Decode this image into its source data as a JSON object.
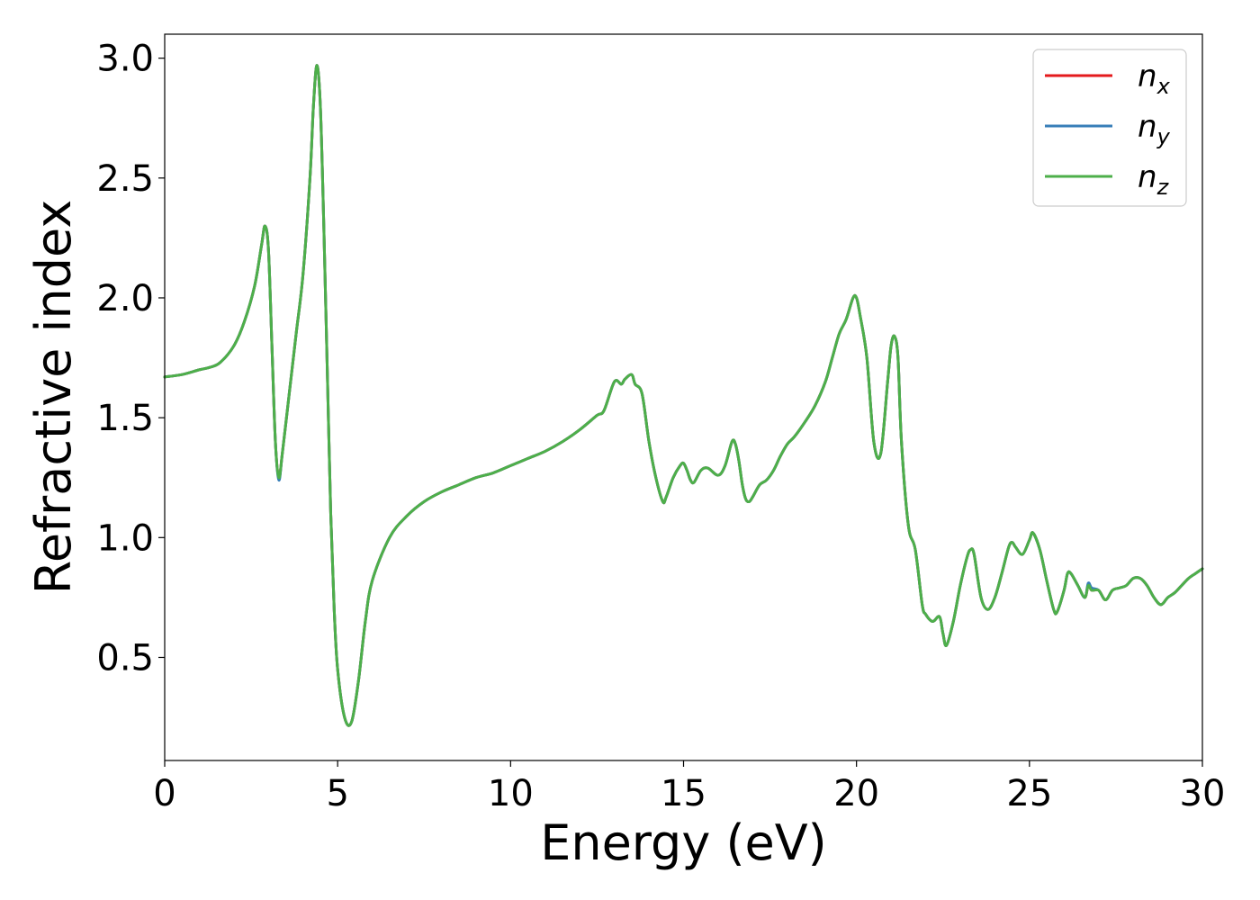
{
  "chart_data": {
    "type": "line",
    "title": "",
    "xlabel": "Energy (eV)",
    "ylabel": "Refractive index",
    "xlim": [
      0,
      30
    ],
    "ylim": [
      0.07,
      3.1
    ],
    "xticks": [
      0,
      5,
      10,
      15,
      20,
      25,
      30
    ],
    "xtick_labels": [
      "0",
      "5",
      "10",
      "15",
      "20",
      "25",
      "30"
    ],
    "yticks": [
      0.5,
      1.0,
      1.5,
      2.0,
      2.5,
      3.0
    ],
    "ytick_labels": [
      "0.5",
      "1.0",
      "1.5",
      "2.0",
      "2.5",
      "3.0"
    ],
    "grid": false,
    "legend": {
      "placement": "top-right",
      "entries": [
        {
          "base": "n",
          "sub": "x",
          "color": "#e41a1c"
        },
        {
          "base": "n",
          "sub": "y",
          "color": "#377eb8"
        },
        {
          "base": "n",
          "sub": "z",
          "color": "#4daf4a"
        }
      ]
    },
    "x": [
      0,
      0.5,
      1.0,
      1.3,
      1.6,
      2.0,
      2.3,
      2.6,
      2.8,
      2.9,
      3.0,
      3.1,
      3.2,
      3.3,
      3.4,
      3.6,
      3.8,
      4.0,
      4.2,
      4.3,
      4.4,
      4.5,
      4.6,
      4.7,
      4.8,
      4.9,
      5.0,
      5.2,
      5.4,
      5.6,
      5.8,
      6.0,
      6.5,
      7.0,
      7.5,
      8.0,
      8.5,
      9.0,
      9.5,
      10.0,
      10.5,
      11.0,
      11.5,
      12.0,
      12.5,
      12.7,
      13.0,
      13.2,
      13.3,
      13.5,
      13.6,
      13.8,
      14.0,
      14.2,
      14.4,
      14.5,
      14.7,
      14.9,
      15.0,
      15.1,
      15.2,
      15.3,
      15.5,
      15.7,
      16.0,
      16.2,
      16.4,
      16.5,
      16.6,
      16.7,
      16.8,
      16.9,
      17.0,
      17.2,
      17.4,
      17.6,
      17.8,
      18.0,
      18.2,
      18.5,
      18.8,
      19.1,
      19.3,
      19.5,
      19.7,
      19.9,
      20.0,
      20.1,
      20.3,
      20.5,
      20.7,
      20.9,
      21.0,
      21.1,
      21.2,
      21.3,
      21.5,
      21.7,
      21.9,
      22.0,
      22.2,
      22.4,
      22.5,
      22.6,
      22.8,
      23.0,
      23.2,
      23.3,
      23.4,
      23.6,
      23.8,
      24.0,
      24.2,
      24.4,
      24.5,
      24.6,
      24.8,
      25.0,
      25.1,
      25.3,
      25.5,
      25.7,
      25.8,
      26.0,
      26.1,
      26.2,
      26.4,
      26.6,
      26.7,
      26.8,
      27.0,
      27.2,
      27.4,
      27.6,
      27.8,
      28.0,
      28.2,
      28.4,
      28.6,
      28.8,
      29.0,
      29.2,
      29.4,
      29.6,
      29.8,
      30.0
    ],
    "series": [
      {
        "name": "n_x",
        "color": "#e41a1c",
        "values": [
          1.67,
          1.68,
          1.7,
          1.71,
          1.73,
          1.8,
          1.9,
          2.05,
          2.22,
          2.3,
          2.2,
          1.8,
          1.4,
          1.25,
          1.35,
          1.6,
          1.85,
          2.1,
          2.5,
          2.8,
          2.97,
          2.8,
          2.3,
          1.7,
          1.1,
          0.7,
          0.45,
          0.25,
          0.23,
          0.4,
          0.65,
          0.82,
          1.0,
          1.09,
          1.15,
          1.19,
          1.22,
          1.25,
          1.27,
          1.3,
          1.33,
          1.36,
          1.4,
          1.45,
          1.51,
          1.53,
          1.65,
          1.64,
          1.66,
          1.68,
          1.64,
          1.6,
          1.4,
          1.25,
          1.15,
          1.17,
          1.25,
          1.3,
          1.31,
          1.28,
          1.24,
          1.23,
          1.28,
          1.29,
          1.26,
          1.3,
          1.4,
          1.39,
          1.32,
          1.22,
          1.16,
          1.15,
          1.17,
          1.22,
          1.24,
          1.28,
          1.34,
          1.39,
          1.42,
          1.48,
          1.55,
          1.65,
          1.75,
          1.85,
          1.91,
          2.0,
          2.0,
          1.93,
          1.75,
          1.4,
          1.35,
          1.65,
          1.8,
          1.84,
          1.75,
          1.4,
          1.05,
          0.95,
          0.72,
          0.68,
          0.65,
          0.67,
          0.6,
          0.55,
          0.65,
          0.8,
          0.92,
          0.95,
          0.93,
          0.75,
          0.7,
          0.75,
          0.85,
          0.96,
          0.98,
          0.96,
          0.93,
          0.99,
          1.02,
          0.95,
          0.82,
          0.7,
          0.69,
          0.78,
          0.85,
          0.85,
          0.8,
          0.75,
          0.8,
          0.78,
          0.78,
          0.74,
          0.78,
          0.79,
          0.8,
          0.83,
          0.83,
          0.8,
          0.75,
          0.72,
          0.75,
          0.77,
          0.8,
          0.83,
          0.85,
          0.87
        ]
      },
      {
        "name": "n_y",
        "color": "#377eb8",
        "values": [
          1.67,
          1.68,
          1.7,
          1.71,
          1.73,
          1.8,
          1.9,
          2.05,
          2.22,
          2.3,
          2.2,
          1.8,
          1.4,
          1.24,
          1.35,
          1.6,
          1.85,
          2.1,
          2.5,
          2.8,
          2.97,
          2.8,
          2.3,
          1.7,
          1.1,
          0.7,
          0.45,
          0.25,
          0.23,
          0.4,
          0.65,
          0.82,
          1.0,
          1.09,
          1.15,
          1.19,
          1.22,
          1.25,
          1.27,
          1.3,
          1.33,
          1.36,
          1.4,
          1.45,
          1.51,
          1.53,
          1.65,
          1.64,
          1.66,
          1.68,
          1.64,
          1.6,
          1.4,
          1.25,
          1.15,
          1.17,
          1.25,
          1.3,
          1.31,
          1.28,
          1.24,
          1.23,
          1.28,
          1.29,
          1.26,
          1.3,
          1.4,
          1.39,
          1.32,
          1.22,
          1.16,
          1.15,
          1.17,
          1.22,
          1.24,
          1.28,
          1.34,
          1.39,
          1.42,
          1.48,
          1.55,
          1.65,
          1.75,
          1.85,
          1.91,
          2.0,
          2.0,
          1.93,
          1.75,
          1.4,
          1.35,
          1.65,
          1.8,
          1.84,
          1.75,
          1.4,
          1.05,
          0.95,
          0.72,
          0.68,
          0.65,
          0.67,
          0.6,
          0.55,
          0.65,
          0.8,
          0.92,
          0.95,
          0.93,
          0.75,
          0.7,
          0.75,
          0.85,
          0.96,
          0.98,
          0.96,
          0.93,
          0.99,
          1.02,
          0.95,
          0.82,
          0.7,
          0.69,
          0.78,
          0.85,
          0.85,
          0.8,
          0.75,
          0.81,
          0.79,
          0.78,
          0.74,
          0.78,
          0.79,
          0.8,
          0.83,
          0.83,
          0.8,
          0.75,
          0.72,
          0.75,
          0.77,
          0.8,
          0.83,
          0.85,
          0.87
        ]
      },
      {
        "name": "n_z",
        "color": "#4daf4a",
        "values": [
          1.67,
          1.68,
          1.7,
          1.71,
          1.73,
          1.8,
          1.9,
          2.05,
          2.22,
          2.3,
          2.2,
          1.8,
          1.4,
          1.25,
          1.35,
          1.6,
          1.85,
          2.1,
          2.5,
          2.8,
          2.97,
          2.8,
          2.3,
          1.7,
          1.1,
          0.7,
          0.45,
          0.25,
          0.23,
          0.4,
          0.65,
          0.82,
          1.0,
          1.09,
          1.15,
          1.19,
          1.22,
          1.25,
          1.27,
          1.3,
          1.33,
          1.36,
          1.4,
          1.45,
          1.51,
          1.53,
          1.65,
          1.64,
          1.66,
          1.68,
          1.64,
          1.6,
          1.4,
          1.25,
          1.15,
          1.17,
          1.25,
          1.3,
          1.31,
          1.28,
          1.24,
          1.23,
          1.28,
          1.29,
          1.26,
          1.3,
          1.4,
          1.39,
          1.32,
          1.22,
          1.16,
          1.15,
          1.17,
          1.22,
          1.24,
          1.28,
          1.34,
          1.39,
          1.42,
          1.48,
          1.55,
          1.65,
          1.75,
          1.85,
          1.91,
          2.0,
          2.0,
          1.93,
          1.75,
          1.4,
          1.35,
          1.65,
          1.8,
          1.84,
          1.75,
          1.4,
          1.05,
          0.95,
          0.72,
          0.68,
          0.65,
          0.67,
          0.6,
          0.55,
          0.65,
          0.8,
          0.92,
          0.95,
          0.93,
          0.75,
          0.7,
          0.75,
          0.85,
          0.96,
          0.98,
          0.96,
          0.93,
          0.99,
          1.02,
          0.95,
          0.82,
          0.7,
          0.69,
          0.78,
          0.85,
          0.85,
          0.8,
          0.75,
          0.8,
          0.78,
          0.78,
          0.74,
          0.78,
          0.79,
          0.8,
          0.83,
          0.83,
          0.8,
          0.75,
          0.72,
          0.75,
          0.77,
          0.8,
          0.83,
          0.85,
          0.87
        ]
      }
    ]
  }
}
